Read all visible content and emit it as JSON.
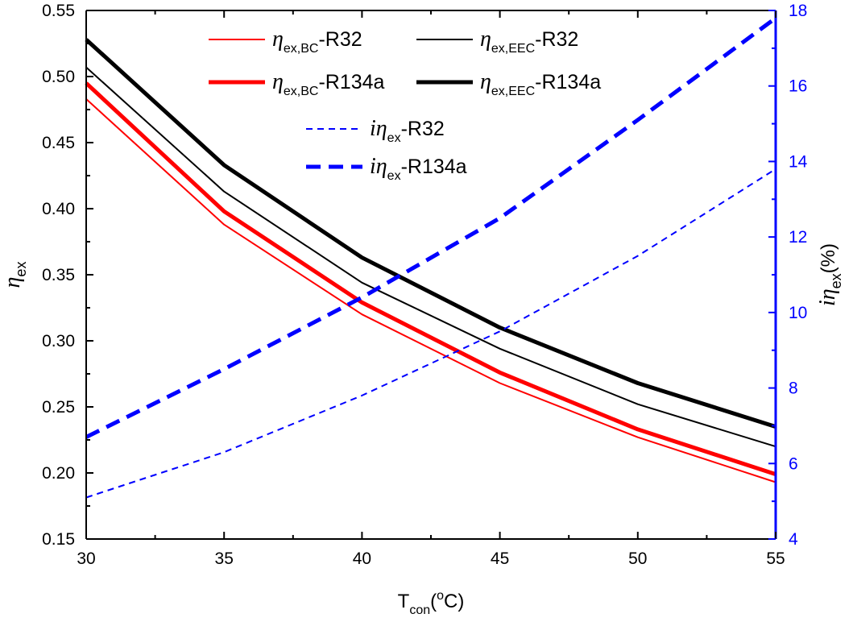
{
  "chart_data": {
    "type": "line",
    "x": [
      30,
      35,
      40,
      45,
      50,
      55
    ],
    "xlabel": {
      "main": "T",
      "sub": "con",
      "open": "(",
      "sup": "o",
      "close": "C)"
    },
    "xlim": [
      30,
      55
    ],
    "xticks": [
      30,
      35,
      40,
      45,
      50,
      55
    ],
    "ylabel": {
      "symbol": "η",
      "sub": "ex"
    },
    "ylim": [
      0.15,
      0.55
    ],
    "yticks": [
      "0.15",
      "0.20",
      "0.25",
      "0.30",
      "0.35",
      "0.40",
      "0.45",
      "0.50",
      "0.55"
    ],
    "y2label": {
      "prefix": "i",
      "symbol": "η",
      "sub": "ex",
      "suffix": "(%)"
    },
    "y2lim": [
      4,
      18
    ],
    "y2ticks": [
      4,
      6,
      8,
      10,
      12,
      14,
      16,
      18
    ],
    "series": [
      {
        "name": "η_ex,BC-R32",
        "legend": {
          "prefix": "",
          "symbol": "η",
          "sub": "ex,BC",
          "suffix": "-R32"
        },
        "axis": "left",
        "color": "#ff0000",
        "width": "thin",
        "dash": "solid",
        "values": [
          0.483,
          0.388,
          0.32,
          0.268,
          0.227,
          0.193
        ]
      },
      {
        "name": "η_ex,BC-R134a",
        "legend": {
          "prefix": "",
          "symbol": "η",
          "sub": "ex,BC",
          "suffix": "-R134a"
        },
        "axis": "left",
        "color": "#ff0000",
        "width": "thick",
        "dash": "solid",
        "values": [
          0.495,
          0.398,
          0.329,
          0.276,
          0.233,
          0.199
        ]
      },
      {
        "name": "η_ex,EEC-R32",
        "legend": {
          "prefix": "",
          "symbol": "η",
          "sub": "ex,EEC",
          "suffix": "-R32"
        },
        "axis": "left",
        "color": "#000000",
        "width": "thin",
        "dash": "solid",
        "values": [
          0.507,
          0.413,
          0.344,
          0.294,
          0.252,
          0.22
        ]
      },
      {
        "name": "η_ex,EEC-R134a",
        "legend": {
          "prefix": "",
          "symbol": "η",
          "sub": "ex,EEC",
          "suffix": "-R134a"
        },
        "axis": "left",
        "color": "#000000",
        "width": "thick",
        "dash": "solid",
        "values": [
          0.528,
          0.433,
          0.363,
          0.31,
          0.268,
          0.235
        ]
      },
      {
        "name": "iη_ex-R32",
        "legend": {
          "prefix": "i",
          "symbol": "η",
          "sub": "ex",
          "suffix": "-R32"
        },
        "axis": "right",
        "color": "#0000ff",
        "width": "thin",
        "dash": "dashed",
        "values": [
          5.1,
          6.3,
          7.8,
          9.5,
          11.5,
          13.8
        ]
      },
      {
        "name": "iη_ex-R134a",
        "legend": {
          "prefix": "i",
          "symbol": "η",
          "sub": "ex",
          "suffix": "-R134a"
        },
        "axis": "right",
        "color": "#0000ff",
        "width": "thick",
        "dash": "dashed",
        "values": [
          6.7,
          8.5,
          10.4,
          12.5,
          15.1,
          17.8
        ]
      }
    ],
    "legend_position": "top-center",
    "grid": false
  }
}
